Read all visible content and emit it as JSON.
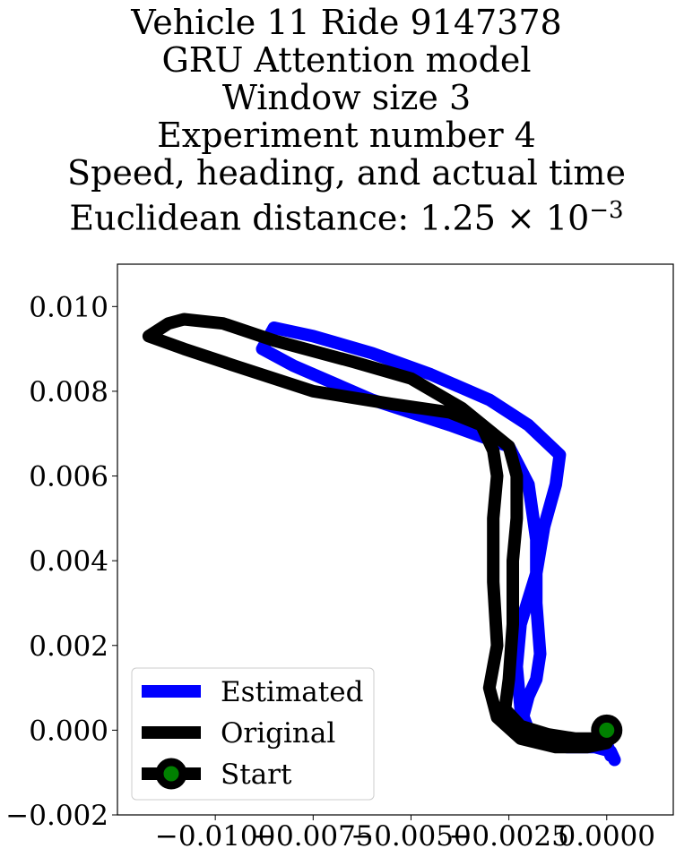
{
  "chart_data": {
    "type": "line",
    "title_lines": [
      "Vehicle 11 Ride 9147378",
      "GRU Attention model",
      "Window size 3",
      "Experiment number 4",
      "Speed, heading, and actual time"
    ],
    "title_last_line": {
      "prefix": "Euclidean distance: 1.25",
      "times": "×",
      "base": "10",
      "exponent": "−3"
    },
    "xlabel": "",
    "ylabel": "",
    "xlim": [
      -0.0125,
      0.0017
    ],
    "ylim": [
      -0.002,
      0.011
    ],
    "xticks": [
      {
        "value": -0.01,
        "label": "−0.0100"
      },
      {
        "value": -0.0075,
        "label": "−0.0075"
      },
      {
        "value": -0.005,
        "label": "−0.0050"
      },
      {
        "value": -0.0025,
        "label": "−0.0025"
      },
      {
        "value": 0.0,
        "label": "0.0000"
      }
    ],
    "yticks": [
      {
        "value": -0.002,
        "label": "−0.002"
      },
      {
        "value": 0.0,
        "label": "0.000"
      },
      {
        "value": 0.002,
        "label": "0.002"
      },
      {
        "value": 0.004,
        "label": "0.004"
      },
      {
        "value": 0.006,
        "label": "0.006"
      },
      {
        "value": 0.008,
        "label": "0.008"
      },
      {
        "value": 0.01,
        "label": "0.010"
      }
    ],
    "grid": false,
    "legend_position": "lower-left",
    "series": [
      {
        "name": "Estimated",
        "color": "#0000ff",
        "x": [
          0.0002,
          0.0001,
          -0.0003,
          -0.001,
          -0.0017,
          -0.0022,
          -0.002,
          -0.0018,
          -0.0017,
          -0.0018,
          -0.0018,
          -0.002,
          -0.0025,
          -0.004,
          -0.006,
          -0.008,
          -0.0088,
          -0.0085,
          -0.0075,
          -0.006,
          -0.0045,
          -0.003,
          -0.002,
          -0.0012,
          -0.0013,
          -0.0016,
          -0.0018,
          -0.0022,
          -0.0023,
          -0.0022,
          -0.002,
          -0.0015,
          -0.0008,
          0.0,
          0.0001
        ],
        "y": [
          -0.0007,
          -0.0005,
          -0.0004,
          -0.0004,
          -0.0003,
          0.0001,
          0.0008,
          0.0012,
          0.0018,
          0.003,
          0.0045,
          0.0058,
          0.0067,
          0.0072,
          0.0078,
          0.0086,
          0.009,
          0.0095,
          0.0093,
          0.0089,
          0.0084,
          0.0078,
          0.0072,
          0.0065,
          0.0058,
          0.0048,
          0.0037,
          0.0025,
          0.0015,
          0.0005,
          0.0,
          -0.0002,
          -0.0003,
          -0.0003,
          -0.0006
        ]
      },
      {
        "name": "Original",
        "color": "#000000",
        "x": [
          0.0,
          -0.0005,
          -0.0013,
          -0.0022,
          -0.0028,
          -0.003,
          -0.0028,
          -0.0029,
          -0.0029,
          -0.0028,
          -0.0029,
          -0.0032,
          -0.004,
          -0.0055,
          -0.0075,
          -0.0095,
          -0.0108,
          -0.0117,
          -0.0112,
          -0.0108,
          -0.0098,
          -0.0085,
          -0.0065,
          -0.005,
          -0.0037,
          -0.0025,
          -0.0023,
          -0.0023,
          -0.0024,
          -0.0024,
          -0.0025,
          -0.0026,
          -0.0022,
          -0.0015,
          -0.0008,
          0.0
        ],
        "y": [
          -0.0003,
          -0.0004,
          -0.0004,
          -0.0002,
          0.0003,
          0.001,
          0.002,
          0.0035,
          0.005,
          0.006,
          0.0066,
          0.0072,
          0.0075,
          0.0077,
          0.008,
          0.0086,
          0.009,
          0.0093,
          0.0096,
          0.0097,
          0.0096,
          0.0092,
          0.0087,
          0.0083,
          0.0076,
          0.0067,
          0.006,
          0.005,
          0.004,
          0.0025,
          0.0012,
          0.0005,
          0.0001,
          -0.0001,
          -0.0002,
          -0.0002
        ]
      }
    ],
    "start_point": {
      "name": "Start",
      "x": 0.0,
      "y": 0.0,
      "marker_edge_color": "#000000",
      "marker_face_color": "#008000"
    }
  }
}
